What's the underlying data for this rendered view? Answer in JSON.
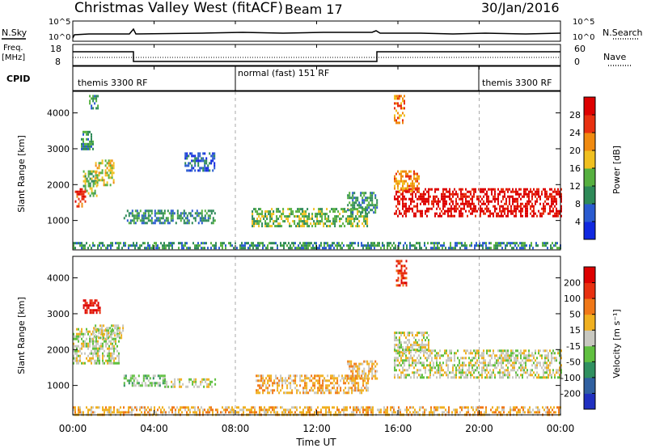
{
  "header": {
    "title": "Christmas Valley West (fitACF)",
    "beam": "Beam 17",
    "date": "30/Jan/2016"
  },
  "summary_panels": {
    "nsky_label": "N.Sky",
    "nsky_ticks": [
      "10^5",
      "10^0"
    ],
    "nsearch_label": "N.Search",
    "freq_label_1": "Freq.",
    "freq_label_2": "[MHz]",
    "freq_ticks": [
      "18",
      "8"
    ],
    "nave_label": "Nave",
    "nave_ticks": [
      "60",
      "0"
    ],
    "cpid_label": "CPID",
    "cpid_segments": [
      {
        "label": "themis 3300 RF",
        "start": "00:00"
      },
      {
        "label": "normal (fast) 151 RF",
        "start": "08:00"
      },
      {
        "label": "themis 3300 RF",
        "start": "20:00"
      }
    ]
  },
  "chart_data": [
    {
      "type": "heatmap",
      "title": "",
      "ylabel": "Slant Range [km]",
      "xlabel": "",
      "x_ticks": [
        "00:00",
        "04:00",
        "08:00",
        "12:00",
        "16:00",
        "20:00",
        "00:00"
      ],
      "xlim_hours": [
        0,
        24
      ],
      "ylim": [
        180,
        4600
      ],
      "y_ticks": [
        1000,
        2000,
        3000,
        4000
      ],
      "colorbar": {
        "label": "Power [dB]",
        "ticks": [
          "4",
          "8",
          "12",
          "16",
          "20",
          "24",
          "28"
        ],
        "colors": [
          "#1028e0",
          "#2a5bd0",
          "#2e8a58",
          "#56b040",
          "#f0c020",
          "#f08a10",
          "#e83010",
          "#dd0000"
        ]
      },
      "dashed_times_hours": [
        8,
        20
      ],
      "regions": [
        {
          "t0": 0.1,
          "t1": 0.6,
          "r0": 1400,
          "r1": 1900,
          "level": 6
        },
        {
          "t0": 0.5,
          "t1": 1.2,
          "r0": 1700,
          "r1": 2400,
          "level": 3
        },
        {
          "t0": 1.1,
          "t1": 2.0,
          "r0": 2000,
          "r1": 2700,
          "level": 4
        },
        {
          "t0": 0.4,
          "t1": 1.0,
          "r0": 3000,
          "r1": 3500,
          "level": 2
        },
        {
          "t0": 0.8,
          "t1": 1.2,
          "r0": 4100,
          "r1": 4500,
          "level": 2
        },
        {
          "t0": 2.5,
          "t1": 7.0,
          "r0": 950,
          "r1": 1300,
          "level": 2
        },
        {
          "t0": 8.8,
          "t1": 14.5,
          "r0": 850,
          "r1": 1350,
          "level": 3
        },
        {
          "t0": 13.5,
          "t1": 15.0,
          "r0": 1250,
          "r1": 1800,
          "level": 2
        },
        {
          "t0": 15.8,
          "t1": 24.0,
          "r0": 1100,
          "r1": 1900,
          "level": 7
        },
        {
          "t0": 15.8,
          "t1": 17.0,
          "r0": 1800,
          "r1": 2400,
          "level": 5
        },
        {
          "t0": 15.8,
          "t1": 16.3,
          "r0": 3700,
          "r1": 4500,
          "level": 5
        },
        {
          "t0": 5.5,
          "t1": 7.0,
          "r0": 2400,
          "r1": 2900,
          "level": 1
        },
        {
          "t0": 0.0,
          "t1": 24.0,
          "r0": 200,
          "r1": 400,
          "level": 2
        }
      ]
    },
    {
      "type": "heatmap",
      "title": "",
      "ylabel": "Slant Range [km]",
      "xlabel": "Time UT",
      "x_ticks": [
        "00:00",
        "04:00",
        "08:00",
        "12:00",
        "16:00",
        "20:00",
        "00:00"
      ],
      "xlim_hours": [
        0,
        24
      ],
      "ylim": [
        180,
        4600
      ],
      "y_ticks": [
        1000,
        2000,
        3000,
        4000
      ],
      "colorbar": {
        "label": "Velocity [m s⁻¹]",
        "ticks": [
          "200",
          "100",
          "50",
          "15",
          "-15",
          "-50",
          "-100",
          "-200"
        ],
        "colors": [
          "#2030c0",
          "#3060a0",
          "#309060",
          "#60c040",
          "#c8c8c0",
          "#f0b020",
          "#f07818",
          "#e83010",
          "#dd0000"
        ]
      },
      "dashed_times_hours": [
        8,
        20
      ],
      "regions": [
        {
          "t0": 0.0,
          "t1": 2.3,
          "r0": 1600,
          "r1": 2600,
          "level": 4
        },
        {
          "t0": 1.0,
          "t1": 2.5,
          "r0": 2300,
          "r1": 2700,
          "level": 4
        },
        {
          "t0": 0.5,
          "t1": 1.3,
          "r0": 3000,
          "r1": 3400,
          "level": 8
        },
        {
          "t0": 2.5,
          "t1": 4.5,
          "r0": 1000,
          "r1": 1300,
          "level": 3
        },
        {
          "t0": 4.5,
          "t1": 7.0,
          "r0": 950,
          "r1": 1200,
          "level": 4
        },
        {
          "t0": 9.0,
          "t1": 14.5,
          "r0": 800,
          "r1": 1300,
          "level": 5
        },
        {
          "t0": 13.5,
          "t1": 15.0,
          "r0": 1200,
          "r1": 1700,
          "level": 5
        },
        {
          "t0": 15.8,
          "t1": 24.0,
          "r0": 1200,
          "r1": 2000,
          "level": 4
        },
        {
          "t0": 15.8,
          "t1": 17.5,
          "r0": 1900,
          "r1": 2500,
          "level": 4
        },
        {
          "t0": 15.9,
          "t1": 16.4,
          "r0": 3800,
          "r1": 4500,
          "level": 7
        },
        {
          "t0": 0.0,
          "t1": 24.0,
          "r0": 200,
          "r1": 420,
          "level": 5
        }
      ]
    }
  ]
}
